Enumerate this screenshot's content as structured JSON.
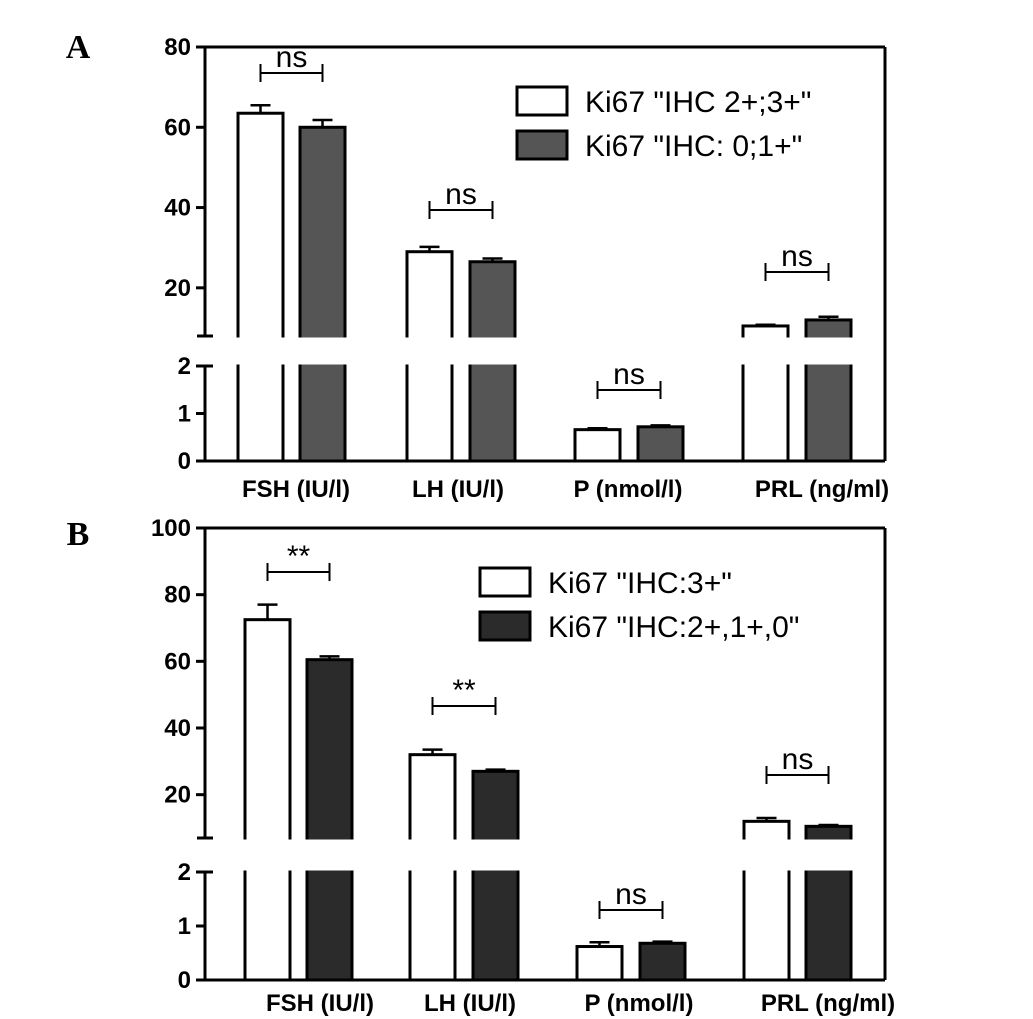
{
  "chart_data": [
    {
      "panel_label": "A",
      "type": "bar",
      "categories": [
        "FSH (IU/l)",
        "LH (IU/l)",
        "P (nmol/l)",
        "PRL (ng/ml)"
      ],
      "series": [
        {
          "name": "Ki67 \"IHC 2+;3+\"",
          "values": [
            63.5,
            29,
            0.66,
            10.5
          ],
          "errors": [
            2,
            1.2,
            0.03,
            0.3
          ],
          "fill": "#ffffff"
        },
        {
          "name": "Ki67 \"IHC: 0;1+\"",
          "values": [
            60,
            26.5,
            0.72,
            12
          ],
          "errors": [
            1.8,
            0.8,
            0.03,
            0.8
          ],
          "fill": "#555555"
        }
      ],
      "significance": [
        "ns",
        "ns",
        "ns",
        "ns"
      ],
      "axis_break": {
        "lower_range": [
          0,
          2
        ],
        "upper_range": [
          8,
          80
        ]
      },
      "lower_ticks": [
        0,
        1,
        2
      ],
      "upper_ticks": [
        20,
        40,
        60,
        80
      ],
      "legend_position": "top-right",
      "title": "",
      "xlabel": "",
      "ylabel": ""
    },
    {
      "panel_label": "B",
      "type": "bar",
      "categories": [
        "FSH (IU/l)",
        "LH (IU/l)",
        "P (nmol/l)",
        "PRL (ng/ml)"
      ],
      "series": [
        {
          "name": "Ki67 \"IHC:3+\"",
          "values": [
            72.5,
            32,
            0.62,
            12
          ],
          "errors": [
            4.5,
            1.5,
            0.08,
            1
          ],
          "fill": "#ffffff"
        },
        {
          "name": "Ki67 \"IHC:2+,1+,0\"",
          "values": [
            60.5,
            27,
            0.68,
            10.5
          ],
          "errors": [
            1,
            0.5,
            0.03,
            0.4
          ],
          "fill": "#2b2b2b"
        }
      ],
      "significance": [
        "**",
        "**",
        "ns",
        "ns"
      ],
      "axis_break": {
        "lower_range": [
          0,
          2
        ],
        "upper_range": [
          7,
          100
        ]
      },
      "lower_ticks": [
        0,
        1,
        2
      ],
      "upper_ticks": [
        20,
        40,
        60,
        80,
        100
      ],
      "legend_position": "top-right",
      "title": "",
      "xlabel": "",
      "ylabel": ""
    }
  ]
}
